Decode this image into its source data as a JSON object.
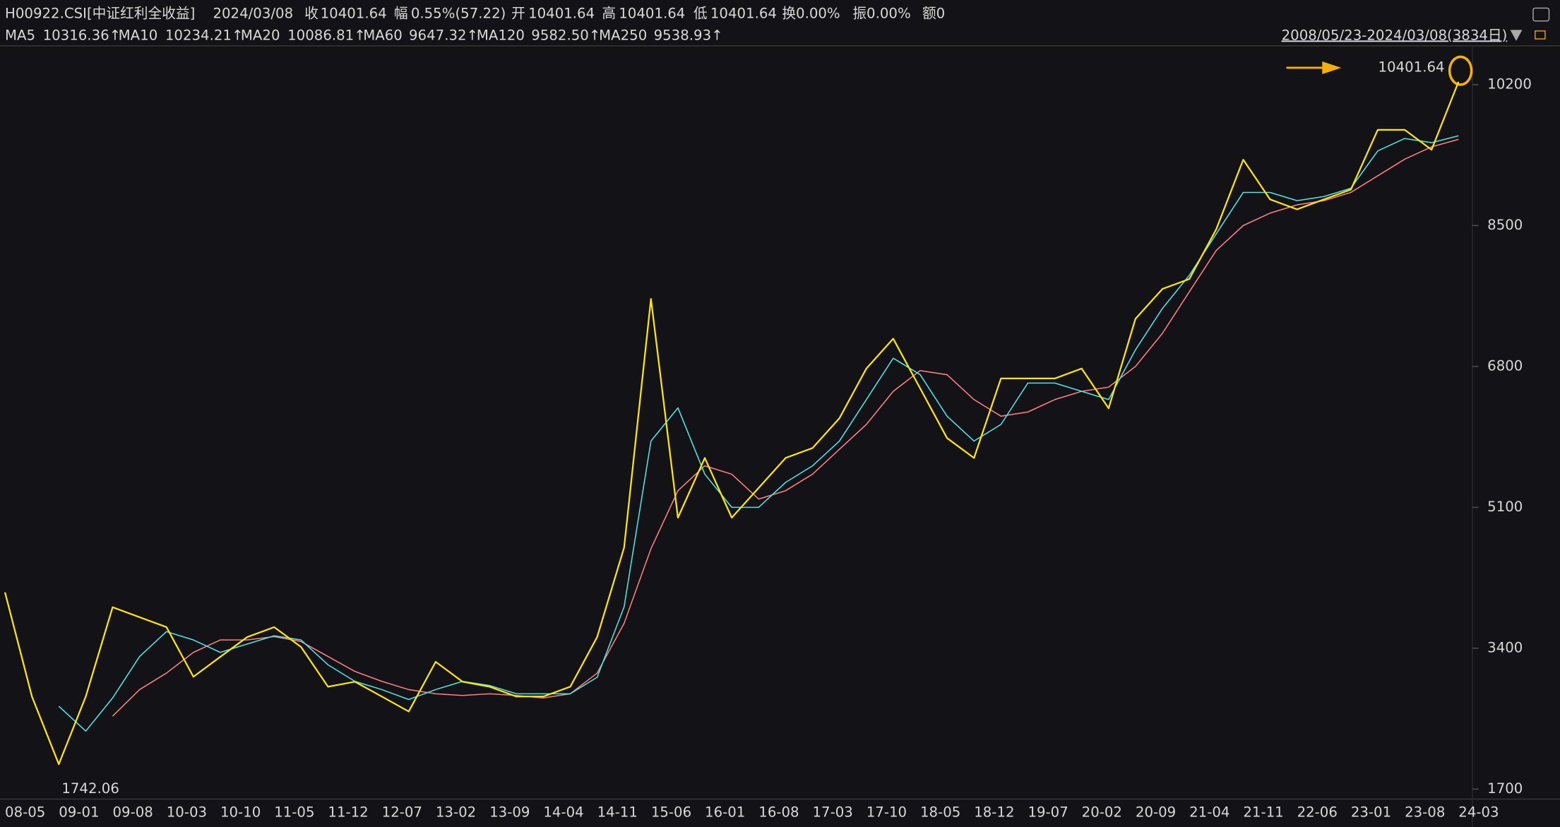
{
  "header": {
    "row1": [
      {
        "text": "H00922.CSI[中证红利全收益]",
        "color": "#e6e6e6"
      },
      {
        "text": "2024/03/08",
        "color": "#e6e6e6"
      },
      {
        "text": "收",
        "color": "#e6e6e6"
      },
      {
        "text": "10401.64",
        "color": "#ff3b3b"
      },
      {
        "text": "幅",
        "color": "#e6e6e6"
      },
      {
        "text": "0.55%(57.22)",
        "color": "#ff3b3b"
      },
      {
        "text": "开",
        "color": "#e6e6e6"
      },
      {
        "text": "10401.64",
        "color": "#ff3b3b"
      },
      {
        "text": "高",
        "color": "#e6e6e6"
      },
      {
        "text": "10401.64",
        "color": "#ff3b3b"
      },
      {
        "text": "低",
        "color": "#e6e6e6"
      },
      {
        "text": "10401.64",
        "color": "#ff3b3b"
      },
      {
        "text": "换0.00%",
        "color": "#e6e6e6"
      },
      {
        "text": "振0.00%",
        "color": "#e6e6e6"
      },
      {
        "text": "额0",
        "color": "#e6e6e6"
      }
    ],
    "ma": [
      {
        "label": "MA5",
        "value": "10316.36↑",
        "color": "#ff8c1a"
      },
      {
        "label": "MA10",
        "value": "10234.21↑",
        "color": "#ffe600"
      },
      {
        "label": "MA20",
        "value": "10086.81↑",
        "color": "#ff33ff"
      },
      {
        "label": "MA60",
        "value": "9647.32↑",
        "color": "#33cc33"
      },
      {
        "label": "MA120",
        "value": "9582.50↑",
        "color": "#4de6e6"
      },
      {
        "label": "MA250",
        "value": "9538.93↑",
        "color": "#ff8080"
      }
    ],
    "range": "2008/05/23-2024/03/08(3834日)"
  },
  "chart_data": {
    "type": "line",
    "categories": [
      "08-05",
      null,
      "09-01",
      null,
      "09-08",
      null,
      "10-03",
      null,
      "10-10",
      null,
      "11-05",
      null,
      "11-12",
      null,
      "12-07",
      null,
      "13-02",
      null,
      "13-09",
      null,
      "14-04",
      null,
      "14-11",
      null,
      "15-06",
      null,
      "16-01",
      null,
      "16-08",
      null,
      "17-03",
      null,
      "17-10",
      null,
      "18-05",
      null,
      "18-12",
      null,
      "19-07",
      null,
      "20-02",
      null,
      "20-09",
      null,
      "21-04",
      null,
      "21-11",
      null,
      "22-06",
      null,
      "23-01",
      null,
      "23-08",
      null,
      "24-03"
    ],
    "series": [
      {
        "color": "#ff8080",
        "values": [
          null,
          null,
          null,
          null,
          2580,
          2900,
          3100,
          3350,
          3500,
          3500,
          3540,
          3480,
          3300,
          3120,
          3000,
          2900,
          2850,
          2830,
          2850,
          2830,
          2800,
          2850,
          3100,
          3700,
          4600,
          5300,
          5600,
          5500,
          5200,
          5300,
          5500,
          5800,
          6100,
          6500,
          6750,
          6700,
          6400,
          6200,
          6250,
          6400,
          6500,
          6550,
          6800,
          7200,
          7700,
          8200,
          8500,
          8650,
          8750,
          8800,
          8900,
          9100,
          9300,
          9450,
          9538.93
        ]
      },
      {
        "color": "#4de6e6",
        "values": [
          null,
          null,
          2700,
          2400,
          2800,
          3300,
          3600,
          3500,
          3350,
          3450,
          3550,
          3500,
          3200,
          3000,
          2900,
          2780,
          2900,
          3000,
          2950,
          2850,
          2850,
          2850,
          3050,
          3900,
          5900,
          6300,
          5500,
          5100,
          5100,
          5400,
          5600,
          5900,
          6400,
          6900,
          6700,
          6200,
          5900,
          6100,
          6600,
          6600,
          6500,
          6400,
          7000,
          7500,
          7900,
          8400,
          8900,
          8900,
          8800,
          8850,
          8950,
          9400,
          9550,
          9500,
          9582.5
        ]
      },
      {
        "color": "#ffe600",
        "values": [
          4075,
          2816,
          2000,
          2816,
          3895,
          3775,
          3655,
          3055,
          3295,
          3535,
          3655,
          3415,
          2935,
          2995,
          2816,
          2636,
          3235,
          2995,
          2935,
          2816,
          2816,
          2935,
          3535,
          4615,
          7615,
          4975,
          5695,
          4975,
          5335,
          5695,
          5815,
          6175,
          6775,
          7135,
          6535,
          5935,
          5695,
          6655,
          6655,
          6655,
          6775,
          6295,
          7375,
          7735,
          7855,
          8455,
          9295,
          8815,
          8695,
          8815,
          8935,
          9655,
          9655,
          9415,
          10234.21
        ]
      }
    ],
    "ylim": [
      1580,
      10680
    ],
    "yticks": [
      1700,
      3400,
      5100,
      6800,
      8500,
      10200
    ],
    "annotations": {
      "high": "10401.64",
      "low": "1742.06"
    }
  }
}
